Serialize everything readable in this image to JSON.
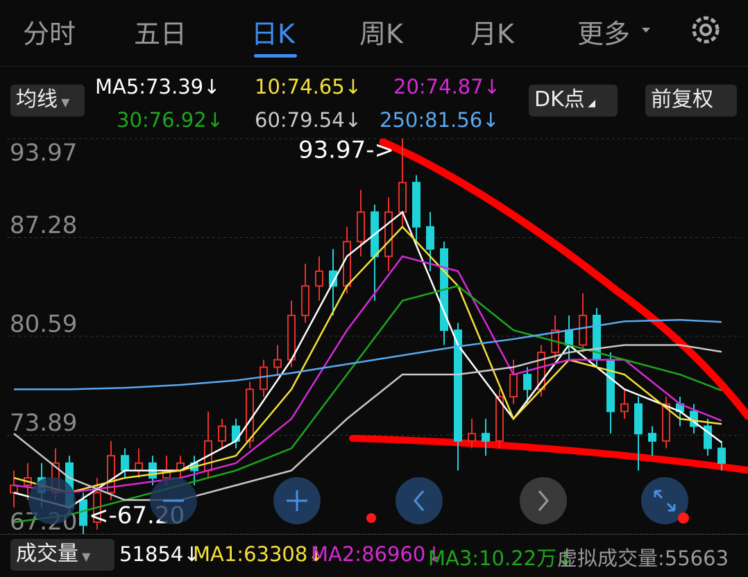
{
  "tabs": [
    "分时",
    "五日",
    "日K",
    "周K",
    "月K",
    "更多"
  ],
  "toolbar": {
    "ma_button": "均线",
    "dk_button": "DK点",
    "adjust_button": "前复权"
  },
  "chart_data": {
    "type": "candlestick",
    "ylim": [
      67.2,
      93.97
    ],
    "yticks": [
      93.97,
      87.28,
      80.59,
      73.89,
      {
        "value": 67.2,
        "label": "67.20"
      }
    ],
    "grid": true,
    "up_color": "#e8302a",
    "down_color": "#1fd3d8",
    "annotations": [
      "93.97->",
      "<-67.20"
    ],
    "open": [
      70,
      70.5,
      71,
      70,
      72,
      69.5,
      68,
      70,
      72.5,
      71.5,
      72,
      71,
      71.5,
      72,
      71.5,
      73.5,
      74.5,
      73.5,
      77,
      78.5,
      79,
      82,
      84,
      85,
      84,
      87,
      89,
      86,
      89,
      91,
      88,
      86.5,
      81,
      73.5,
      74,
      73.5,
      76.5,
      78,
      77,
      79.5,
      81,
      80,
      82,
      79,
      75.5,
      76,
      74,
      73.5,
      76,
      75.5,
      74.5,
      73
    ],
    "high": [
      71.5,
      72,
      72,
      73,
      72.5,
      70,
      71,
      73.5,
      73,
      73,
      72.5,
      72.5,
      72.5,
      72.5,
      75.5,
      75,
      75,
      77.5,
      79,
      80,
      83,
      85.5,
      86,
      86.5,
      88,
      90.5,
      89.5,
      90,
      93.97,
      91.5,
      89,
      87,
      81.5,
      75,
      75,
      77,
      79,
      78.5,
      80,
      82,
      82,
      83.5,
      82.5,
      79.5,
      77,
      76.5,
      74.5,
      76.5,
      76.5,
      76,
      75,
      73.5
    ],
    "low": [
      69,
      69.5,
      69,
      69.5,
      68.5,
      67.2,
      67.5,
      69.5,
      71,
      71,
      70.5,
      70.5,
      71,
      70.5,
      71,
      73,
      73,
      73,
      76.5,
      78,
      78.5,
      81.5,
      83,
      82,
      83.5,
      86,
      83,
      85,
      88,
      87,
      85,
      80,
      71.5,
      73,
      72.5,
      73,
      76,
      76,
      76.5,
      79,
      79,
      79.5,
      78.5,
      74,
      75,
      71.5,
      72.5,
      73,
      74.5,
      74,
      72.5,
      71.5
    ],
    "close": [
      70.5,
      71,
      70,
      72,
      69,
      67.8,
      70,
      72.5,
      71.5,
      72,
      71,
      71.5,
      72,
      71.5,
      73.5,
      74.5,
      73.5,
      77,
      78.5,
      79,
      82,
      84,
      85,
      84,
      87,
      89,
      86,
      89,
      91,
      88,
      86.5,
      81,
      73.5,
      74,
      73.5,
      76.5,
      78,
      77,
      79.5,
      81,
      80,
      82,
      79,
      75.5,
      76,
      74,
      73.5,
      76,
      75.5,
      74.5,
      73,
      72
    ],
    "ma_x": [
      0,
      4,
      8,
      12,
      16,
      20,
      24,
      28,
      32,
      36,
      40,
      44,
      48,
      51
    ],
    "ma_lines": [
      {
        "label": "MA5:73.39↓",
        "color": "#ffffff",
        "values": [
          70,
          69,
          71.5,
          71.5,
          73.5,
          79,
          86,
          89,
          80,
          75,
          80,
          77,
          75.5,
          73.4
        ]
      },
      {
        "label": "10:74.65↓",
        "color": "#f5e03a",
        "values": [
          71,
          70,
          71,
          71.5,
          72.5,
          77,
          84,
          88,
          84,
          75,
          79,
          78,
          75,
          74.65
        ]
      },
      {
        "label": "20:74.87↓",
        "color": "#d52ad5",
        "values": [
          70.5,
          70,
          70.5,
          71,
          72,
          75,
          81,
          86,
          85,
          78,
          79,
          79,
          76,
          74.87
        ]
      },
      {
        "label": "30:76.92↓",
        "color": "#1ea51e",
        "values": [
          68,
          68.5,
          69.5,
          70.5,
          71.5,
          73,
          78,
          83,
          84,
          81,
          80,
          79,
          78,
          76.92
        ]
      },
      {
        "label": "60:79.54↓",
        "color": "#c8c8c8",
        "values": [
          74,
          71,
          69.5,
          69.5,
          70.5,
          71.5,
          75,
          78,
          78,
          78.5,
          79.5,
          80,
          80,
          79.54
        ]
      },
      {
        "label": "250:81.56↓",
        "color": "#5aa9f0",
        "values": [
          77,
          77,
          77.1,
          77.3,
          77.6,
          78.1,
          78.7,
          79.3,
          79.9,
          80.4,
          81,
          81.6,
          81.7,
          81.56
        ]
      }
    ]
  },
  "volume_bar": {
    "button": "成交量",
    "items": [
      {
        "text": "51854↓",
        "color": "#ffffff"
      },
      {
        "text": "MA1:63308↓",
        "color": "#f5e03a"
      },
      {
        "text": "MA2:86960↓",
        "color": "#d52ad5"
      },
      {
        "text": "MA3:10.22万↓",
        "color": "#1ea51e"
      },
      {
        "text": "虚拟成交量:55663",
        "color": "#9a9a9a"
      }
    ]
  }
}
